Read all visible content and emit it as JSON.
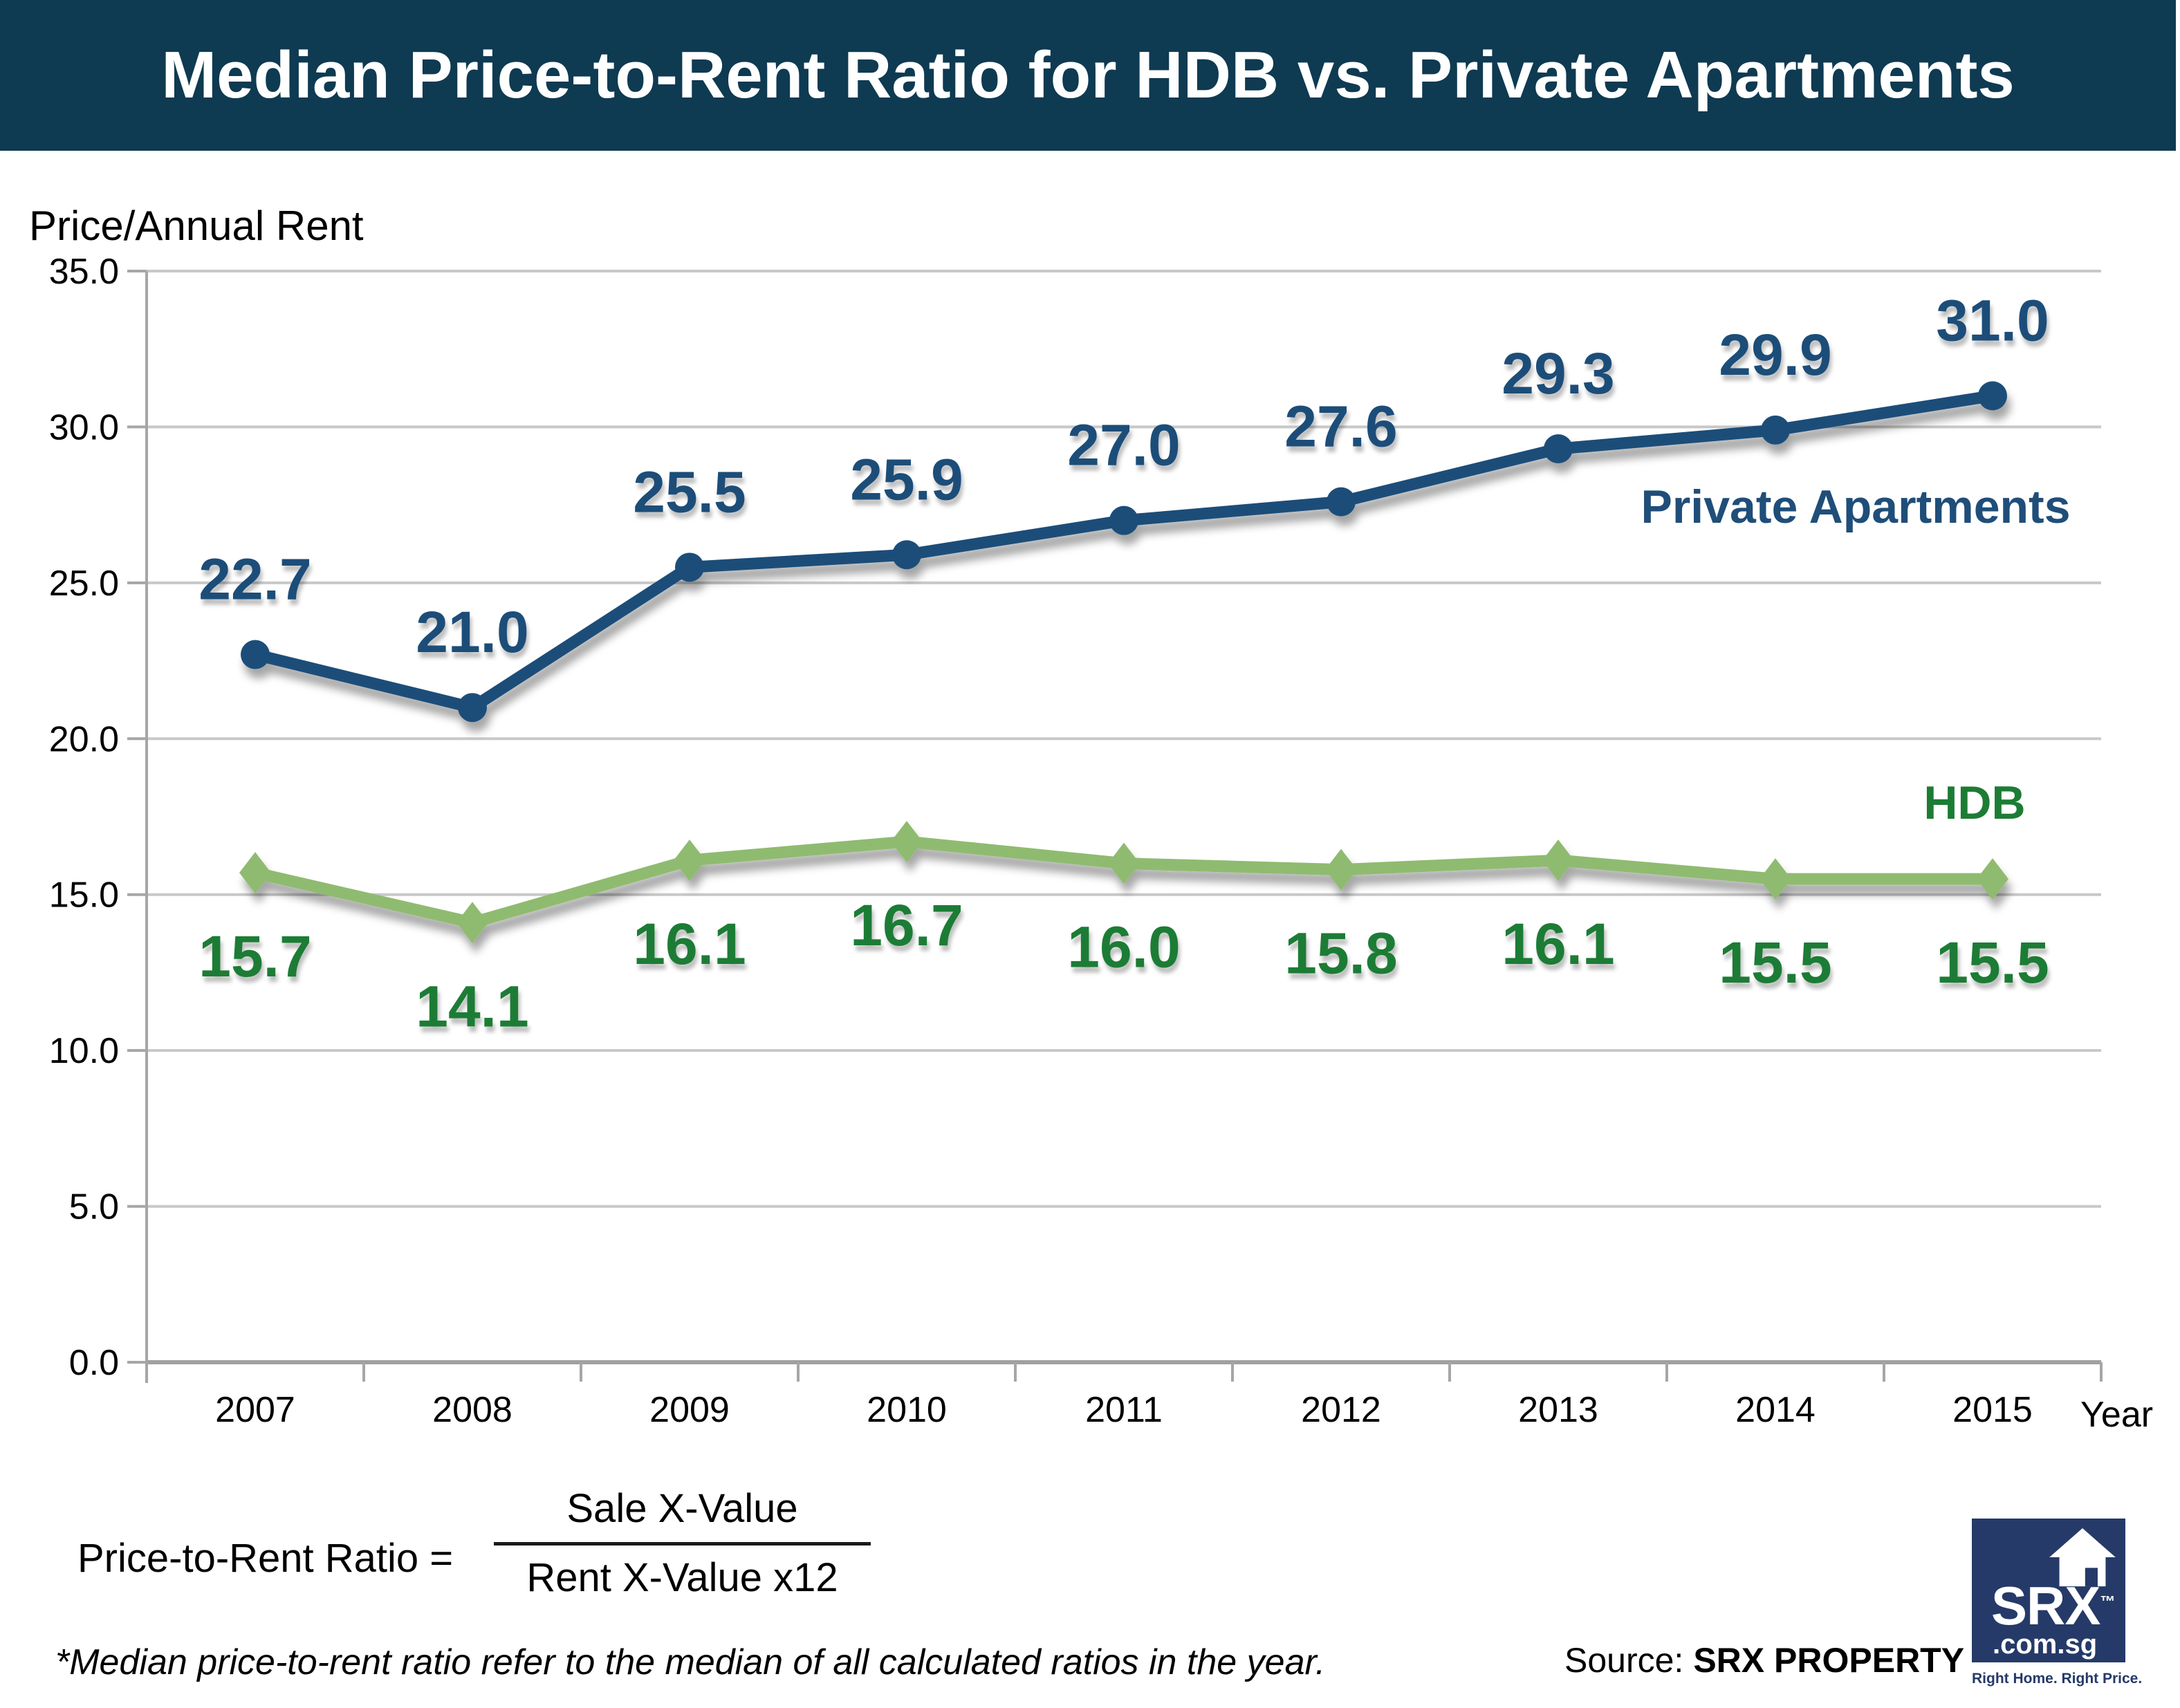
{
  "header": {
    "title": "Median Price-to-Rent Ratio for HDB vs. Private Apartments",
    "background_color": "#0E3A52"
  },
  "chart_data": {
    "type": "line",
    "title": "Median Price-to-Rent Ratio for HDB vs. Private Apartments",
    "ylabel": "Price/Annual Rent",
    "xlabel": "Year",
    "categories": [
      "2007",
      "2008",
      "2009",
      "2010",
      "2011",
      "2012",
      "2013",
      "2014",
      "2015"
    ],
    "y_ticks": [
      35.0,
      30.0,
      25.0,
      20.0,
      15.0,
      10.0,
      5.0,
      0.0
    ],
    "ylim": [
      0,
      35
    ],
    "grid": "horizontal",
    "legend_position": "inline-annotations",
    "series": [
      {
        "name": "Private Apartments",
        "color": "#1F4E79",
        "label_color": "#1F4E79",
        "marker": "circle",
        "label_position": "above",
        "values": [
          22.7,
          21.0,
          25.5,
          25.9,
          27.0,
          27.6,
          29.3,
          29.9,
          31.0
        ]
      },
      {
        "name": "HDB",
        "color": "#8FBB6F",
        "label_color": "#1C7C34",
        "marker": "diamond",
        "label_position": "below",
        "values": [
          15.7,
          14.1,
          16.1,
          16.7,
          16.0,
          15.8,
          16.1,
          15.5,
          15.5
        ]
      }
    ]
  },
  "formula": {
    "lhs": "Price-to-Rent Ratio =",
    "numerator": "Sale X-Value",
    "denominator": "Rent X-Value x12"
  },
  "footnote": "*Median price-to-rent ratio refer to the median of all calculated ratios in the year.",
  "source": {
    "prefix": "Source:",
    "name": "SRX PROPERTY"
  },
  "logo": {
    "brand": "SRX",
    "tm": "™",
    "domain": ".com.sg",
    "tagline": "Right Home. Right Price.",
    "color": "#253A68"
  },
  "colors": {
    "gridline": "#C8C8C8",
    "axis": "#A6A6A6",
    "private_series": "#1F4E79",
    "hdb_series": "#8FBB6F",
    "hdb_label": "#1C7C34"
  }
}
